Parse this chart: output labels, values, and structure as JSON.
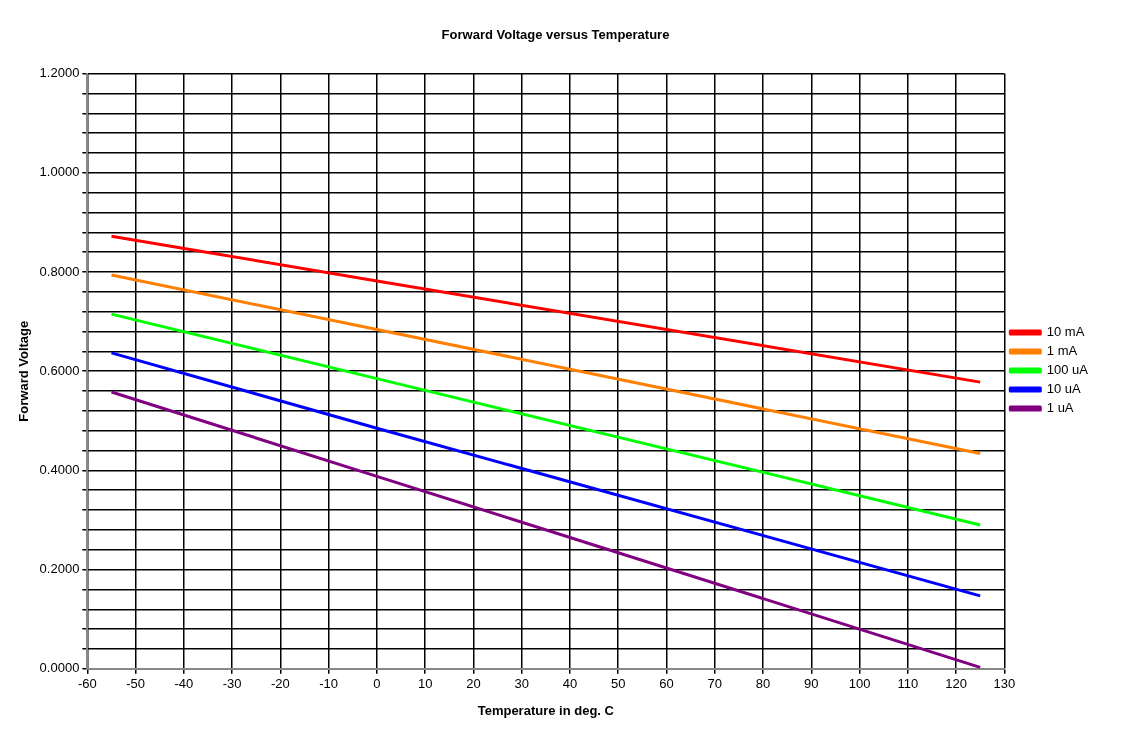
{
  "chart_data": {
    "type": "line",
    "title": "Forward Voltage versus Temperature",
    "xlabel": "Temperature in deg. C",
    "ylabel": "Forward Voltage",
    "x": [
      -55,
      0,
      125
    ],
    "series": [
      {
        "name": "10 mA",
        "color": "#ff0000",
        "values": [
          0.872,
          0.782,
          0.578
        ]
      },
      {
        "name": "1 mA",
        "color": "#ff7f00",
        "values": [
          0.794,
          0.684,
          0.434
        ]
      },
      {
        "name": "100 uA",
        "color": "#00ff00",
        "values": [
          0.715,
          0.585,
          0.29
        ]
      },
      {
        "name": "10 uA",
        "color": "#0000ff",
        "values": [
          0.637,
          0.485,
          0.147
        ]
      },
      {
        "name": "1 uA",
        "color": "#800080",
        "values": [
          0.558,
          0.388,
          0.003
        ]
      }
    ],
    "xlim": [
      -60,
      130
    ],
    "xticks": [
      -60,
      -50,
      -40,
      -30,
      -20,
      -10,
      0,
      10,
      20,
      30,
      40,
      50,
      60,
      70,
      80,
      90,
      100,
      110,
      120,
      130
    ],
    "ylim": [
      0,
      1.2
    ],
    "yticks": [
      {
        "value": 0,
        "label": "0.0000"
      },
      {
        "value": 0.04,
        "label": null
      },
      {
        "value": 0.08,
        "label": null
      },
      {
        "value": 0.12,
        "label": null
      },
      {
        "value": 0.16,
        "label": null
      },
      {
        "value": 0.2,
        "label": "0.2000"
      },
      {
        "value": 0.24,
        "label": null
      },
      {
        "value": 0.28,
        "label": null
      },
      {
        "value": 0.32,
        "label": null
      },
      {
        "value": 0.36,
        "label": null
      },
      {
        "value": 0.4,
        "label": "0.4000"
      },
      {
        "value": 0.44,
        "label": null
      },
      {
        "value": 0.48,
        "label": null
      },
      {
        "value": 0.52,
        "label": null
      },
      {
        "value": 0.56,
        "label": null
      },
      {
        "value": 0.6,
        "label": "0.6000"
      },
      {
        "value": 0.64,
        "label": null
      },
      {
        "value": 0.68,
        "label": null
      },
      {
        "value": 0.72,
        "label": null
      },
      {
        "value": 0.76,
        "label": null
      },
      {
        "value": 0.8,
        "label": "0.8000"
      },
      {
        "value": 0.84,
        "label": null
      },
      {
        "value": 0.88,
        "label": null
      },
      {
        "value": 0.92,
        "label": null
      },
      {
        "value": 0.96,
        "label": null
      },
      {
        "value": 1.0,
        "label": "1.0000"
      },
      {
        "value": 1.04,
        "label": null
      },
      {
        "value": 1.08,
        "label": null
      },
      {
        "value": 1.12,
        "label": null
      },
      {
        "value": 1.16,
        "label": null
      },
      {
        "value": 1.2,
        "label": "1.2000"
      }
    ],
    "grid": true,
    "legend": "right",
    "marker": "none",
    "line_style": "solid"
  }
}
